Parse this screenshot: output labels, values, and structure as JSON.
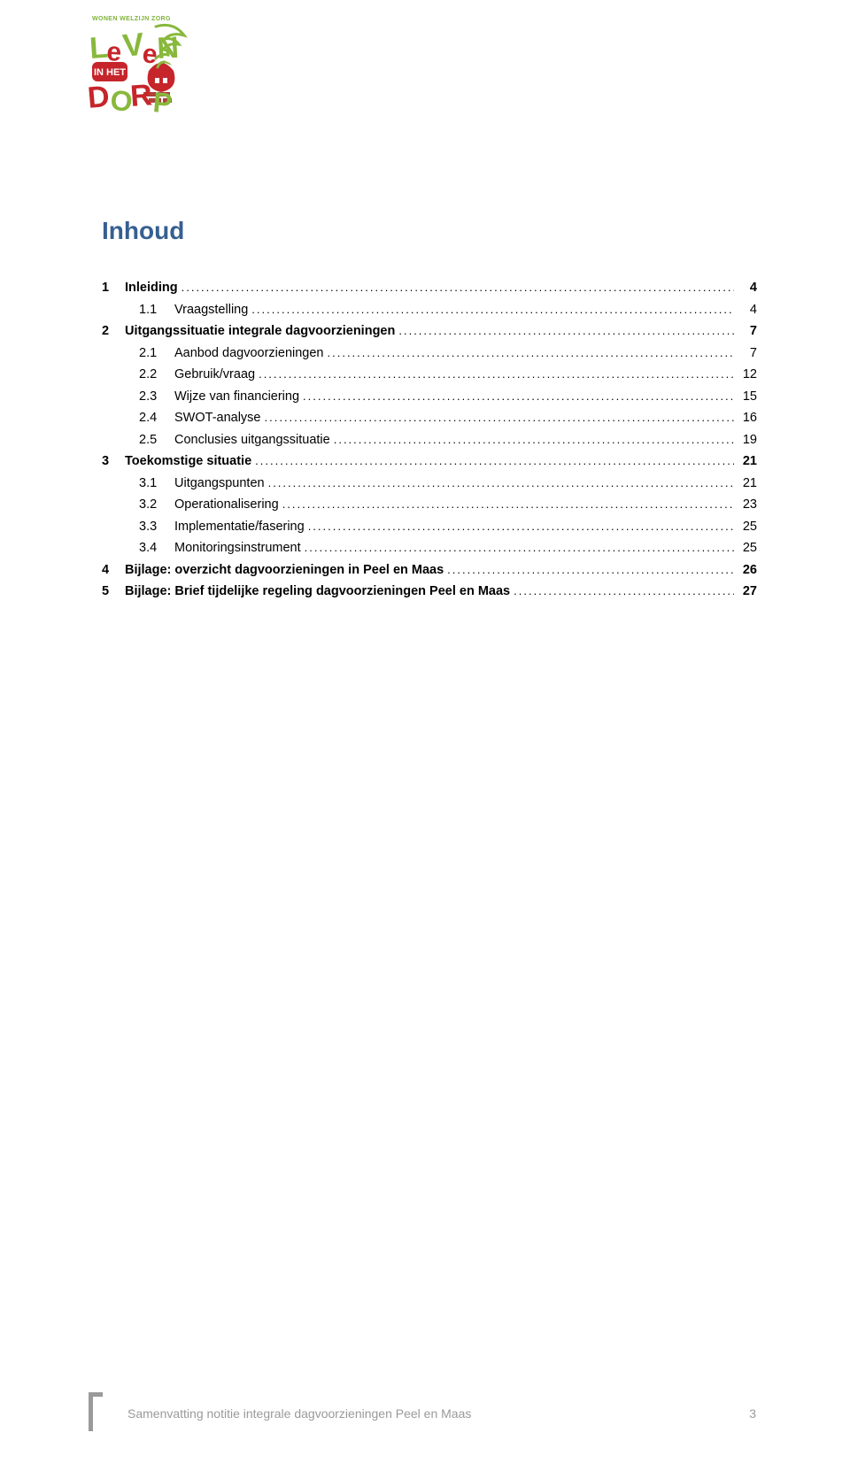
{
  "logo": {
    "top_text": "WONEN WELZIJN ZORG",
    "word1": "LeVeN",
    "word2": "IN HET",
    "word3": "DORP",
    "colors": {
      "green": "#88b83c",
      "red": "#c6252b",
      "white": "#ffffff",
      "brick": "#b0403a"
    }
  },
  "heading": "Inhoud",
  "heading_color": "#365f91",
  "toc": [
    {
      "num": "1",
      "title": "Inleiding",
      "page": "4",
      "level": 0,
      "bold": true
    },
    {
      "num": "1.1",
      "title": "Vraagstelling",
      "page": "4",
      "level": 1,
      "bold": false
    },
    {
      "num": "2",
      "title": "Uitgangssituatie integrale dagvoorzieningen",
      "page": "7",
      "level": 0,
      "bold": true
    },
    {
      "num": "2.1",
      "title": "Aanbod dagvoorzieningen",
      "page": "7",
      "level": 1,
      "bold": false
    },
    {
      "num": "2.2",
      "title": "Gebruik/vraag",
      "page": "12",
      "level": 1,
      "bold": false
    },
    {
      "num": "2.3",
      "title": "Wijze van financiering",
      "page": "15",
      "level": 1,
      "bold": false
    },
    {
      "num": "2.4",
      "title": "SWOT-analyse",
      "page": "16",
      "level": 1,
      "bold": false
    },
    {
      "num": "2.5",
      "title": "Conclusies uitgangssituatie",
      "page": "19",
      "level": 1,
      "bold": false
    },
    {
      "num": "3",
      "title": "Toekomstige situatie",
      "page": "21",
      "level": 0,
      "bold": true
    },
    {
      "num": "3.1",
      "title": "Uitgangspunten",
      "page": "21",
      "level": 1,
      "bold": false
    },
    {
      "num": "3.2",
      "title": "Operationalisering",
      "page": "23",
      "level": 1,
      "bold": false
    },
    {
      "num": "3.3",
      "title": "Implementatie/fasering",
      "page": "25",
      "level": 1,
      "bold": false
    },
    {
      "num": "3.4",
      "title": "Monitoringsinstrument",
      "page": "25",
      "level": 1,
      "bold": false
    },
    {
      "num": "4",
      "title": "Bijlage: overzicht dagvoorzieningen in Peel en Maas",
      "page": "26",
      "level": 0,
      "bold": true
    },
    {
      "num": "5",
      "title": "Bijlage: Brief tijdelijke regeling dagvoorzieningen Peel en Maas",
      "page": "27",
      "level": 0,
      "bold": true
    }
  ],
  "footer": {
    "text": "Samenvatting notitie integrale dagvoorzieningen Peel en Maas",
    "page": "3",
    "color": "#9a9a9a"
  }
}
